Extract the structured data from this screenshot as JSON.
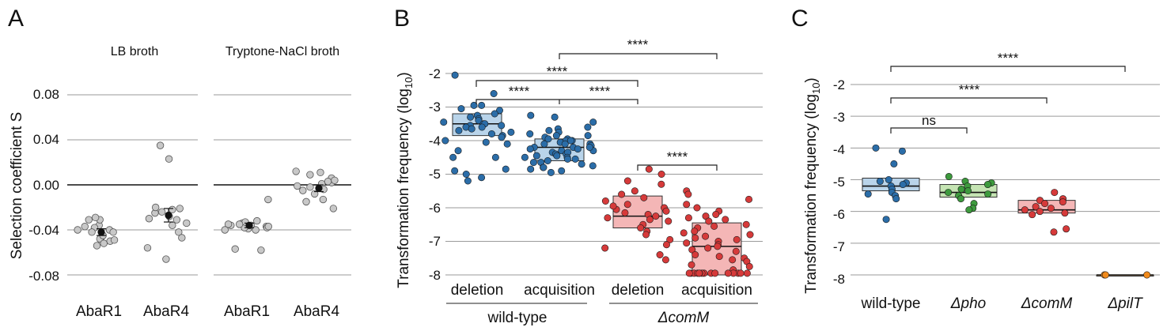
{
  "panels": [
    {
      "letter": "A",
      "ylabel": "Selection coefficient S",
      "strips": [
        "LB broth",
        "Tryptone-NaCl broth"
      ],
      "yticks": [
        "0.08",
        "0.04",
        "0.00",
        "-0.04",
        "-0.08"
      ],
      "categories": [
        "AbaR1",
        "AbaR4",
        "AbaR1",
        "AbaR4"
      ]
    },
    {
      "letter": "B",
      "ylabel": "Transformation frequency (log",
      "ylabel_sub": "10",
      "ylabel_end": ")",
      "yticks": [
        "-2",
        "-3",
        "-4",
        "-5",
        "-6",
        "-7",
        "-8"
      ],
      "categories": [
        "deletion",
        "acquisition",
        "deletion",
        "acquisition"
      ],
      "groups": [
        "wild-type",
        "ΔcomM"
      ],
      "sig": [
        "****",
        "****",
        "****",
        "****",
        "****"
      ]
    },
    {
      "letter": "C",
      "ylabel": "Transformation frequency (log",
      "ylabel_sub": "10",
      "ylabel_end": ")",
      "yticks": [
        "-2",
        "-3",
        "-4",
        "-5",
        "-6",
        "-7",
        "-8"
      ],
      "categories": [
        "wild-type",
        "Δpho",
        "ΔcomM",
        "ΔpilT"
      ],
      "sig": [
        "****",
        "****",
        "ns"
      ]
    }
  ],
  "chart_data": [
    {
      "type": "scatter",
      "ylim": [
        -0.1,
        0.1
      ],
      "grid": true,
      "series": [
        {
          "name": "LB broth AbaR1",
          "mean": -0.042,
          "se": 0.003,
          "color": "#c8c8c8",
          "values": [
            -0.037,
            -0.04,
            -0.046,
            -0.054,
            -0.031,
            -0.042,
            -0.05,
            -0.036,
            -0.048,
            -0.031,
            -0.04,
            -0.045,
            -0.052,
            -0.038,
            -0.049,
            -0.042,
            -0.029
          ]
        },
        {
          "name": "LB broth AbaR4",
          "mean": -0.027,
          "se": 0.006,
          "color": "#c8c8c8",
          "values": [
            0.023,
            0.035,
            -0.024,
            -0.028,
            -0.03,
            -0.022,
            -0.034,
            -0.025,
            -0.02,
            -0.042,
            -0.047,
            -0.036,
            -0.056,
            -0.066,
            -0.021,
            -0.031
          ]
        },
        {
          "name": "Tryptone-NaCl AbaR1",
          "mean": -0.036,
          "se": 0.002,
          "color": "#c8c8c8",
          "values": [
            -0.037,
            -0.038,
            -0.036,
            -0.04,
            -0.035,
            -0.037,
            -0.039,
            -0.034,
            -0.036,
            -0.038,
            -0.033,
            -0.04,
            -0.032,
            -0.035,
            -0.057,
            -0.058,
            -0.013
          ]
        },
        {
          "name": "Tryptone-NaCl AbaR4",
          "mean": -0.003,
          "se": 0.003,
          "color": "#c8c8c8",
          "values": [
            0.001,
            -0.004,
            0.002,
            -0.002,
            0.006,
            -0.008,
            -0.015,
            0.011,
            0.012,
            0.009,
            -0.021,
            -0.005,
            0.004,
            -0.013,
            0.003,
            -0.001
          ]
        }
      ]
    },
    {
      "type": "scatter",
      "ylim": [
        -8.2,
        -1.6
      ],
      "grid": true,
      "series": [
        {
          "name": "wild-type deletion",
          "box": [
            -3.85,
            -3.5,
            -3.2
          ],
          "color": "#2b6da8",
          "box_color": "#b9d4ea",
          "values": [
            -2.05,
            -2.6,
            -2.95,
            -2.95,
            -3.05,
            -3.1,
            -3.2,
            -3.25,
            -3.35,
            -3.4,
            -3.45,
            -3.5,
            -3.5,
            -3.55,
            -3.55,
            -3.6,
            -3.65,
            -3.7,
            -3.75,
            -3.8,
            -3.85,
            -3.9,
            -4.0,
            -4.05,
            -4.1,
            -4.3,
            -4.5,
            -4.5,
            -4.85,
            -4.9,
            -5.0,
            -5.1,
            -5.2,
            -3.3,
            -3.6
          ]
        },
        {
          "name": "wild-type acquisition",
          "box": [
            -4.6,
            -4.2,
            -3.95
          ],
          "color": "#2b6da8",
          "box_color": "#b9d4ea",
          "values": [
            -3.25,
            -3.3,
            -3.45,
            -3.6,
            -3.65,
            -3.7,
            -3.75,
            -3.8,
            -3.85,
            -3.9,
            -3.95,
            -3.95,
            -4.0,
            -4.05,
            -4.1,
            -4.1,
            -4.15,
            -4.2,
            -4.2,
            -4.25,
            -4.3,
            -4.3,
            -4.35,
            -4.4,
            -4.4,
            -4.45,
            -4.5,
            -4.55,
            -4.6,
            -4.65,
            -4.7,
            -4.75,
            -4.8,
            -4.85,
            -4.9,
            -4.95,
            -4.0,
            -4.25,
            -4.35,
            -4.5,
            -4.65,
            -3.85,
            -4.1,
            -4.45,
            -4.8,
            -4.2,
            -4.55,
            -4.0
          ]
        },
        {
          "name": "ΔcomM deletion",
          "box": [
            -6.6,
            -6.25,
            -5.65
          ],
          "color": "#d63a3a",
          "box_color": "#f4b6b6",
          "values": [
            -4.85,
            -5.0,
            -5.2,
            -5.3,
            -5.5,
            -5.6,
            -5.7,
            -5.8,
            -5.9,
            -6.0,
            -6.05,
            -6.1,
            -6.2,
            -6.25,
            -6.3,
            -6.35,
            -6.4,
            -6.5,
            -6.6,
            -6.7,
            -6.8,
            -6.95,
            -7.1,
            -7.2,
            -7.4,
            -7.55,
            -6.15,
            -5.95
          ]
        },
        {
          "name": "ΔcomM acquisition",
          "box": [
            -8.0,
            -7.15,
            -6.45
          ],
          "color": "#d63a3a",
          "box_color": "#f4b6b6",
          "values": [
            -5.5,
            -5.6,
            -5.75,
            -5.9,
            -6.0,
            -6.1,
            -6.2,
            -6.25,
            -6.3,
            -6.4,
            -6.5,
            -6.55,
            -6.6,
            -6.7,
            -6.8,
            -6.85,
            -6.9,
            -7.0,
            -7.05,
            -7.1,
            -7.2,
            -7.25,
            -7.3,
            -7.4,
            -7.45,
            -7.5,
            -7.6,
            -7.7,
            -7.75,
            -7.85,
            -7.95,
            -7.95,
            -7.95,
            -7.95,
            -7.95,
            -7.95,
            -7.95,
            -7.95,
            -7.95,
            -7.95,
            -7.95,
            -7.95,
            -7.95,
            -7.95,
            -7.95,
            -6.95,
            -7.15,
            -6.35,
            -7.55,
            -6.75
          ]
        }
      ]
    },
    {
      "type": "scatter",
      "ylim": [
        -8.3,
        -1.4
      ],
      "grid": true,
      "series": [
        {
          "name": "wild-type",
          "box": [
            -5.35,
            -5.2,
            -4.95
          ],
          "color": "#2b6da8",
          "box_color": "#b9d4ea",
          "values": [
            -4.0,
            -4.1,
            -4.5,
            -5.0,
            -5.05,
            -5.1,
            -5.15,
            -5.2,
            -5.3,
            -5.4,
            -5.45,
            -5.5,
            -5.6,
            -6.25
          ]
        },
        {
          "name": "Δpho",
          "box": [
            -5.55,
            -5.4,
            -5.15
          ],
          "color": "#3d9a3d",
          "box_color": "#c5e4b3",
          "values": [
            -4.9,
            -5.05,
            -5.1,
            -5.15,
            -5.2,
            -5.3,
            -5.35,
            -5.4,
            -5.45,
            -5.5,
            -5.6,
            -5.75,
            -5.9,
            -5.95
          ]
        },
        {
          "name": "ΔcomM",
          "box": [
            -6.05,
            -5.95,
            -5.65
          ],
          "color": "#d63a3a",
          "box_color": "#f4b6b6",
          "values": [
            -5.4,
            -5.6,
            -5.65,
            -5.7,
            -5.75,
            -5.85,
            -5.9,
            -5.95,
            -6.0,
            -6.05,
            -6.1,
            -6.55,
            -6.65
          ]
        },
        {
          "name": "ΔpilT",
          "box": [
            -8.0,
            -8.0,
            -8.0
          ],
          "color": "#f08a1c",
          "box_color": "#f9c98f",
          "values": [
            -8.0,
            -8.0,
            -8.0
          ]
        }
      ]
    }
  ]
}
